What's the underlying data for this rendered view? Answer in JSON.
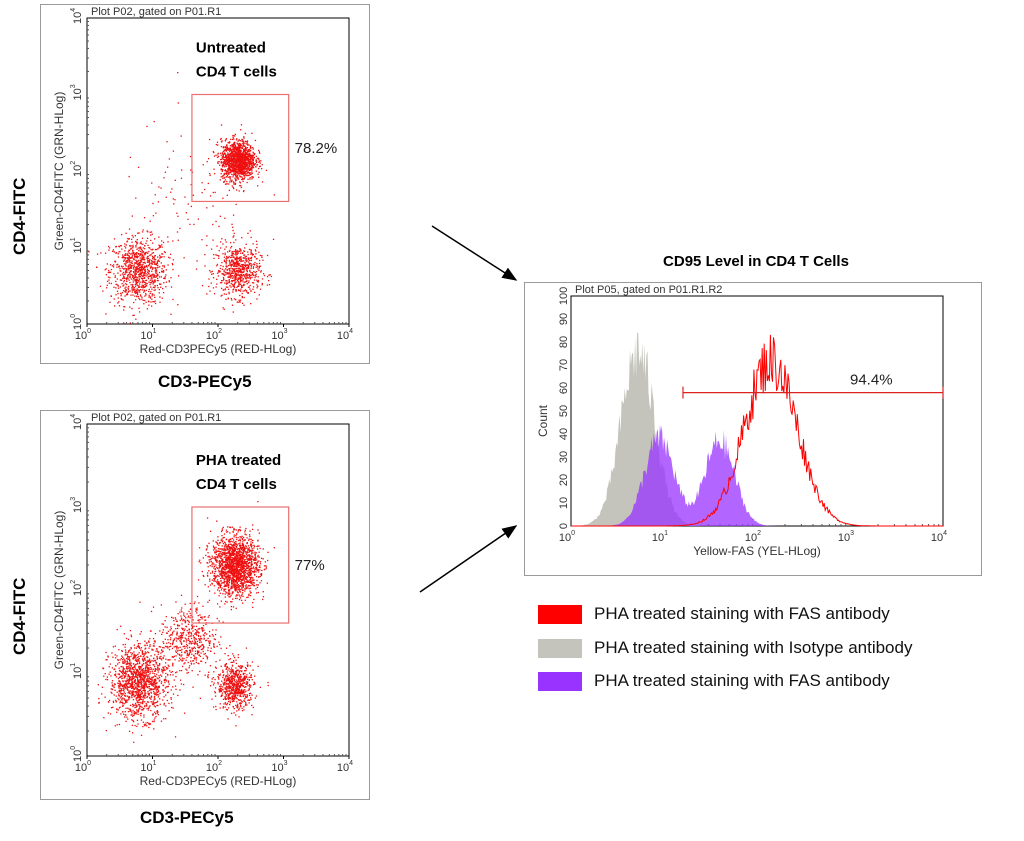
{
  "chart_data": [
    {
      "type": "scatter",
      "plot_label": "Plot P02, gated on P01.R1",
      "xlabel": "Red-CD3PECy5 (RED-HLog)",
      "ylabel": "Green-CD4FITC (GRN-HLog)",
      "outer_xlabel": "CD3-PECy5",
      "outer_ylabel": "CD4-FITC",
      "xscale": "log",
      "yscale": "log",
      "xlim": [
        1,
        10000
      ],
      "ylim": [
        1,
        10000
      ],
      "ticks": [
        "10",
        "10",
        "10",
        "10",
        "10"
      ],
      "tick_exponents": [
        "0",
        "1",
        "2",
        "3",
        "4"
      ],
      "annotation": [
        "Untreated",
        "CD4 T cells"
      ],
      "gate": {
        "x": [
          40,
          1200
        ],
        "y": [
          40,
          1000
        ],
        "percent": "78.2%"
      },
      "populations": [
        {
          "x": 6,
          "y": 5,
          "count": 900,
          "spread": 0.22
        },
        {
          "x": 200,
          "y": 5,
          "count": 650,
          "spread": 0.17
        },
        {
          "x": 200,
          "y": 140,
          "count": 1300,
          "spread": 0.13
        },
        {
          "x": 40,
          "y": 30,
          "count": 120,
          "spread": 0.55
        }
      ],
      "point_color": "#ee1111"
    },
    {
      "type": "scatter",
      "plot_label": "Plot P02, gated on P01.R1",
      "xlabel": "Red-CD3PECy5 (RED-HLog)",
      "ylabel": "Green-CD4FITC (GRN-HLog)",
      "outer_xlabel": "CD3-PECy5",
      "outer_ylabel": "CD4-FITC",
      "xscale": "log",
      "yscale": "log",
      "xlim": [
        1,
        10000
      ],
      "ylim": [
        1,
        10000
      ],
      "ticks": [
        "10",
        "10",
        "10",
        "10",
        "10"
      ],
      "tick_exponents": [
        "0",
        "1",
        "2",
        "3",
        "4"
      ],
      "annotation": [
        "PHA treated",
        "CD4 T cells"
      ],
      "gate": {
        "x": [
          40,
          1200
        ],
        "y": [
          40,
          1000
        ],
        "percent": "77%"
      },
      "populations": [
        {
          "x": 6,
          "y": 8,
          "count": 1300,
          "spread": 0.22
        },
        {
          "x": 180,
          "y": 7,
          "count": 650,
          "spread": 0.14
        },
        {
          "x": 180,
          "y": 200,
          "count": 1700,
          "spread": 0.18
        },
        {
          "x": 35,
          "y": 25,
          "count": 500,
          "spread": 0.22
        }
      ],
      "point_color": "#ee1111"
    },
    {
      "type": "histogram",
      "title": "CD95 Level in CD4 T Cells",
      "plot_label": "Plot P05, gated on P01.R1.R2",
      "xlabel": "Yellow-FAS (YEL-HLog)",
      "ylabel": "Count",
      "xscale": "log",
      "xlim": [
        1,
        10000
      ],
      "ylim": [
        0,
        100
      ],
      "ticks": [
        "10",
        "10",
        "10",
        "10",
        "10"
      ],
      "tick_exponents": [
        "0",
        "1",
        "2",
        "3",
        "4"
      ],
      "y_ticks": [
        "0",
        "10",
        "20",
        "30",
        "40",
        "50",
        "60",
        "70",
        "80",
        "90",
        "100"
      ],
      "marker": {
        "x_start": 16,
        "x_end": 10000,
        "y": 58,
        "percent": "94.4%"
      },
      "series": [
        {
          "name": "PHA treated staining with FAS antibody",
          "color": "#ff0000",
          "style": "line",
          "peaks": [
            {
              "log_center": 2.15,
              "width": 0.28,
              "height": 72
            }
          ],
          "max": 85
        },
        {
          "name": "PHA treated staining withIsotype antibody",
          "color": "#c4c4bc",
          "style": "fill",
          "peaks": [
            {
              "log_center": 0.72,
              "width": 0.18,
              "height": 76
            }
          ]
        },
        {
          "name": "PHA treated staining withFAS antibody",
          "color": "#9933ff",
          "style": "fill",
          "peaks": [
            {
              "log_center": 0.95,
              "width": 0.16,
              "height": 38
            },
            {
              "log_center": 1.6,
              "width": 0.16,
              "height": 37
            }
          ]
        }
      ]
    }
  ],
  "legend": [
    {
      "label": "PHA treated staining with FAS antibody",
      "color": "#ff0000"
    },
    {
      "label": "PHA treated staining with Isotype antibody",
      "color": "#c4c4bc"
    },
    {
      "label": "PHA treated staining with FAS antibody",
      "color": "#9933ff"
    }
  ]
}
